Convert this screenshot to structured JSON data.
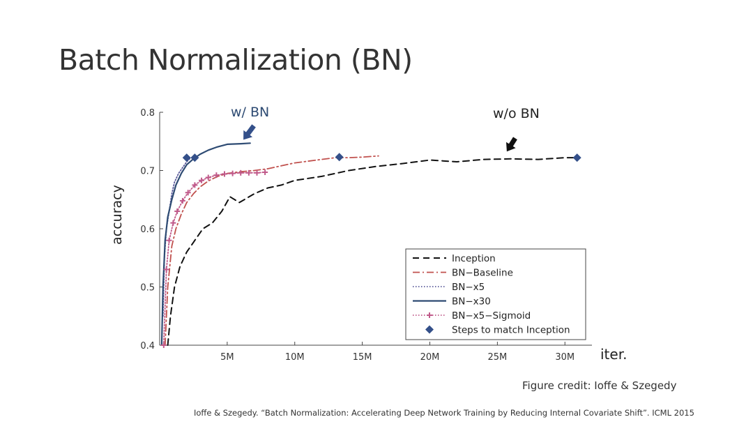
{
  "slide": {
    "title": "Batch Normalization (BN)",
    "figure_credit": "Figure credit: Ioffe & Szegedy",
    "citation": "Ioffe & Szegedy. “Batch Normalization: Accelerating Deep Network Training by Reducing Internal Covariate Shift”. ICML 2015"
  },
  "chart_data": {
    "type": "line",
    "title": "",
    "xlabel": "iter.",
    "ylabel": "accuracy",
    "xlim": [
      0,
      32
    ],
    "ylim": [
      0.4,
      0.8
    ],
    "x_unit": "M",
    "x_ticks": [
      5,
      10,
      15,
      20,
      25,
      30
    ],
    "x_tick_labels": [
      "5M",
      "10M",
      "15M",
      "20M",
      "25M",
      "30M"
    ],
    "y_ticks": [
      0.4,
      0.5,
      0.6,
      0.7,
      0.8
    ],
    "y_tick_labels": [
      "0.4",
      "0.5",
      "0.6",
      "0.7",
      "0.8"
    ],
    "legend_position": "bottom-right",
    "series": [
      {
        "name": "Inception",
        "style": "dashed",
        "color": "#111111",
        "x": [
          0.6,
          0.8,
          1.1,
          1.5,
          2.0,
          2.6,
          3.2,
          3.9,
          4.6,
          5.2,
          5.9,
          7,
          8,
          9,
          10,
          12,
          14,
          16,
          18,
          20,
          22,
          24,
          26,
          28,
          30,
          31
        ],
        "y": [
          0.4,
          0.45,
          0.5,
          0.535,
          0.56,
          0.58,
          0.6,
          0.61,
          0.63,
          0.655,
          0.645,
          0.66,
          0.67,
          0.675,
          0.683,
          0.69,
          0.7,
          0.707,
          0.712,
          0.718,
          0.715,
          0.719,
          0.72,
          0.719,
          0.722,
          0.722
        ]
      },
      {
        "name": "BN−Baseline",
        "style": "dashdot",
        "color": "#c0504d",
        "x": [
          0.4,
          0.6,
          0.9,
          1.2,
          1.6,
          2.0,
          2.5,
          3.0,
          3.6,
          4.3,
          5,
          6,
          7,
          8,
          9,
          10,
          11,
          12,
          13,
          14,
          15,
          16.2
        ],
        "y": [
          0.4,
          0.5,
          0.57,
          0.6,
          0.625,
          0.645,
          0.66,
          0.672,
          0.682,
          0.69,
          0.695,
          0.698,
          0.7,
          0.703,
          0.708,
          0.713,
          0.716,
          0.719,
          0.722,
          0.722,
          0.723,
          0.725
        ]
      },
      {
        "name": "BN−x5",
        "style": "dotted",
        "color": "#5a5a9a",
        "x": [
          0.25,
          0.35,
          0.5,
          0.7,
          0.9,
          1.1,
          1.4,
          1.7,
          2.0,
          2.3
        ],
        "y": [
          0.45,
          0.55,
          0.6,
          0.63,
          0.66,
          0.68,
          0.695,
          0.705,
          0.715,
          0.722
        ]
      },
      {
        "name": "BN−x30",
        "style": "solid",
        "color": "#2e4b73",
        "x": [
          0.15,
          0.25,
          0.4,
          0.6,
          0.9,
          1.2,
          1.6,
          2.0,
          2.5,
          3.0,
          3.6,
          4.2,
          5,
          6,
          6.7
        ],
        "y": [
          0.4,
          0.5,
          0.58,
          0.62,
          0.65,
          0.675,
          0.695,
          0.71,
          0.72,
          0.728,
          0.735,
          0.74,
          0.745,
          0.746,
          0.747
        ]
      },
      {
        "name": "BN−x5−Sigmoid",
        "style": "dotted-plus",
        "color": "#c05a8a",
        "x": [
          0.3,
          0.5,
          0.7,
          1.0,
          1.3,
          1.7,
          2.1,
          2.6,
          3.1,
          3.6,
          4.2,
          4.8,
          5.4,
          6.0,
          6.6,
          7.2,
          7.8
        ],
        "y": [
          0.4,
          0.53,
          0.58,
          0.61,
          0.63,
          0.648,
          0.662,
          0.675,
          0.683,
          0.688,
          0.692,
          0.694,
          0.695,
          0.696,
          0.696,
          0.696,
          0.697
        ]
      }
    ],
    "markers": {
      "name": "Steps to match Inception",
      "shape": "diamond",
      "color": "#34508a",
      "x": [
        2.0,
        2.6,
        13.3,
        30.9
      ],
      "y": [
        0.722,
        0.722,
        0.723,
        0.722
      ]
    },
    "annotations": [
      {
        "text": "w/ BN",
        "arrow_target": [
          6.2,
          0.748
        ]
      },
      {
        "text": "w/o BN",
        "arrow_target": [
          25.7,
          0.735
        ]
      }
    ]
  }
}
